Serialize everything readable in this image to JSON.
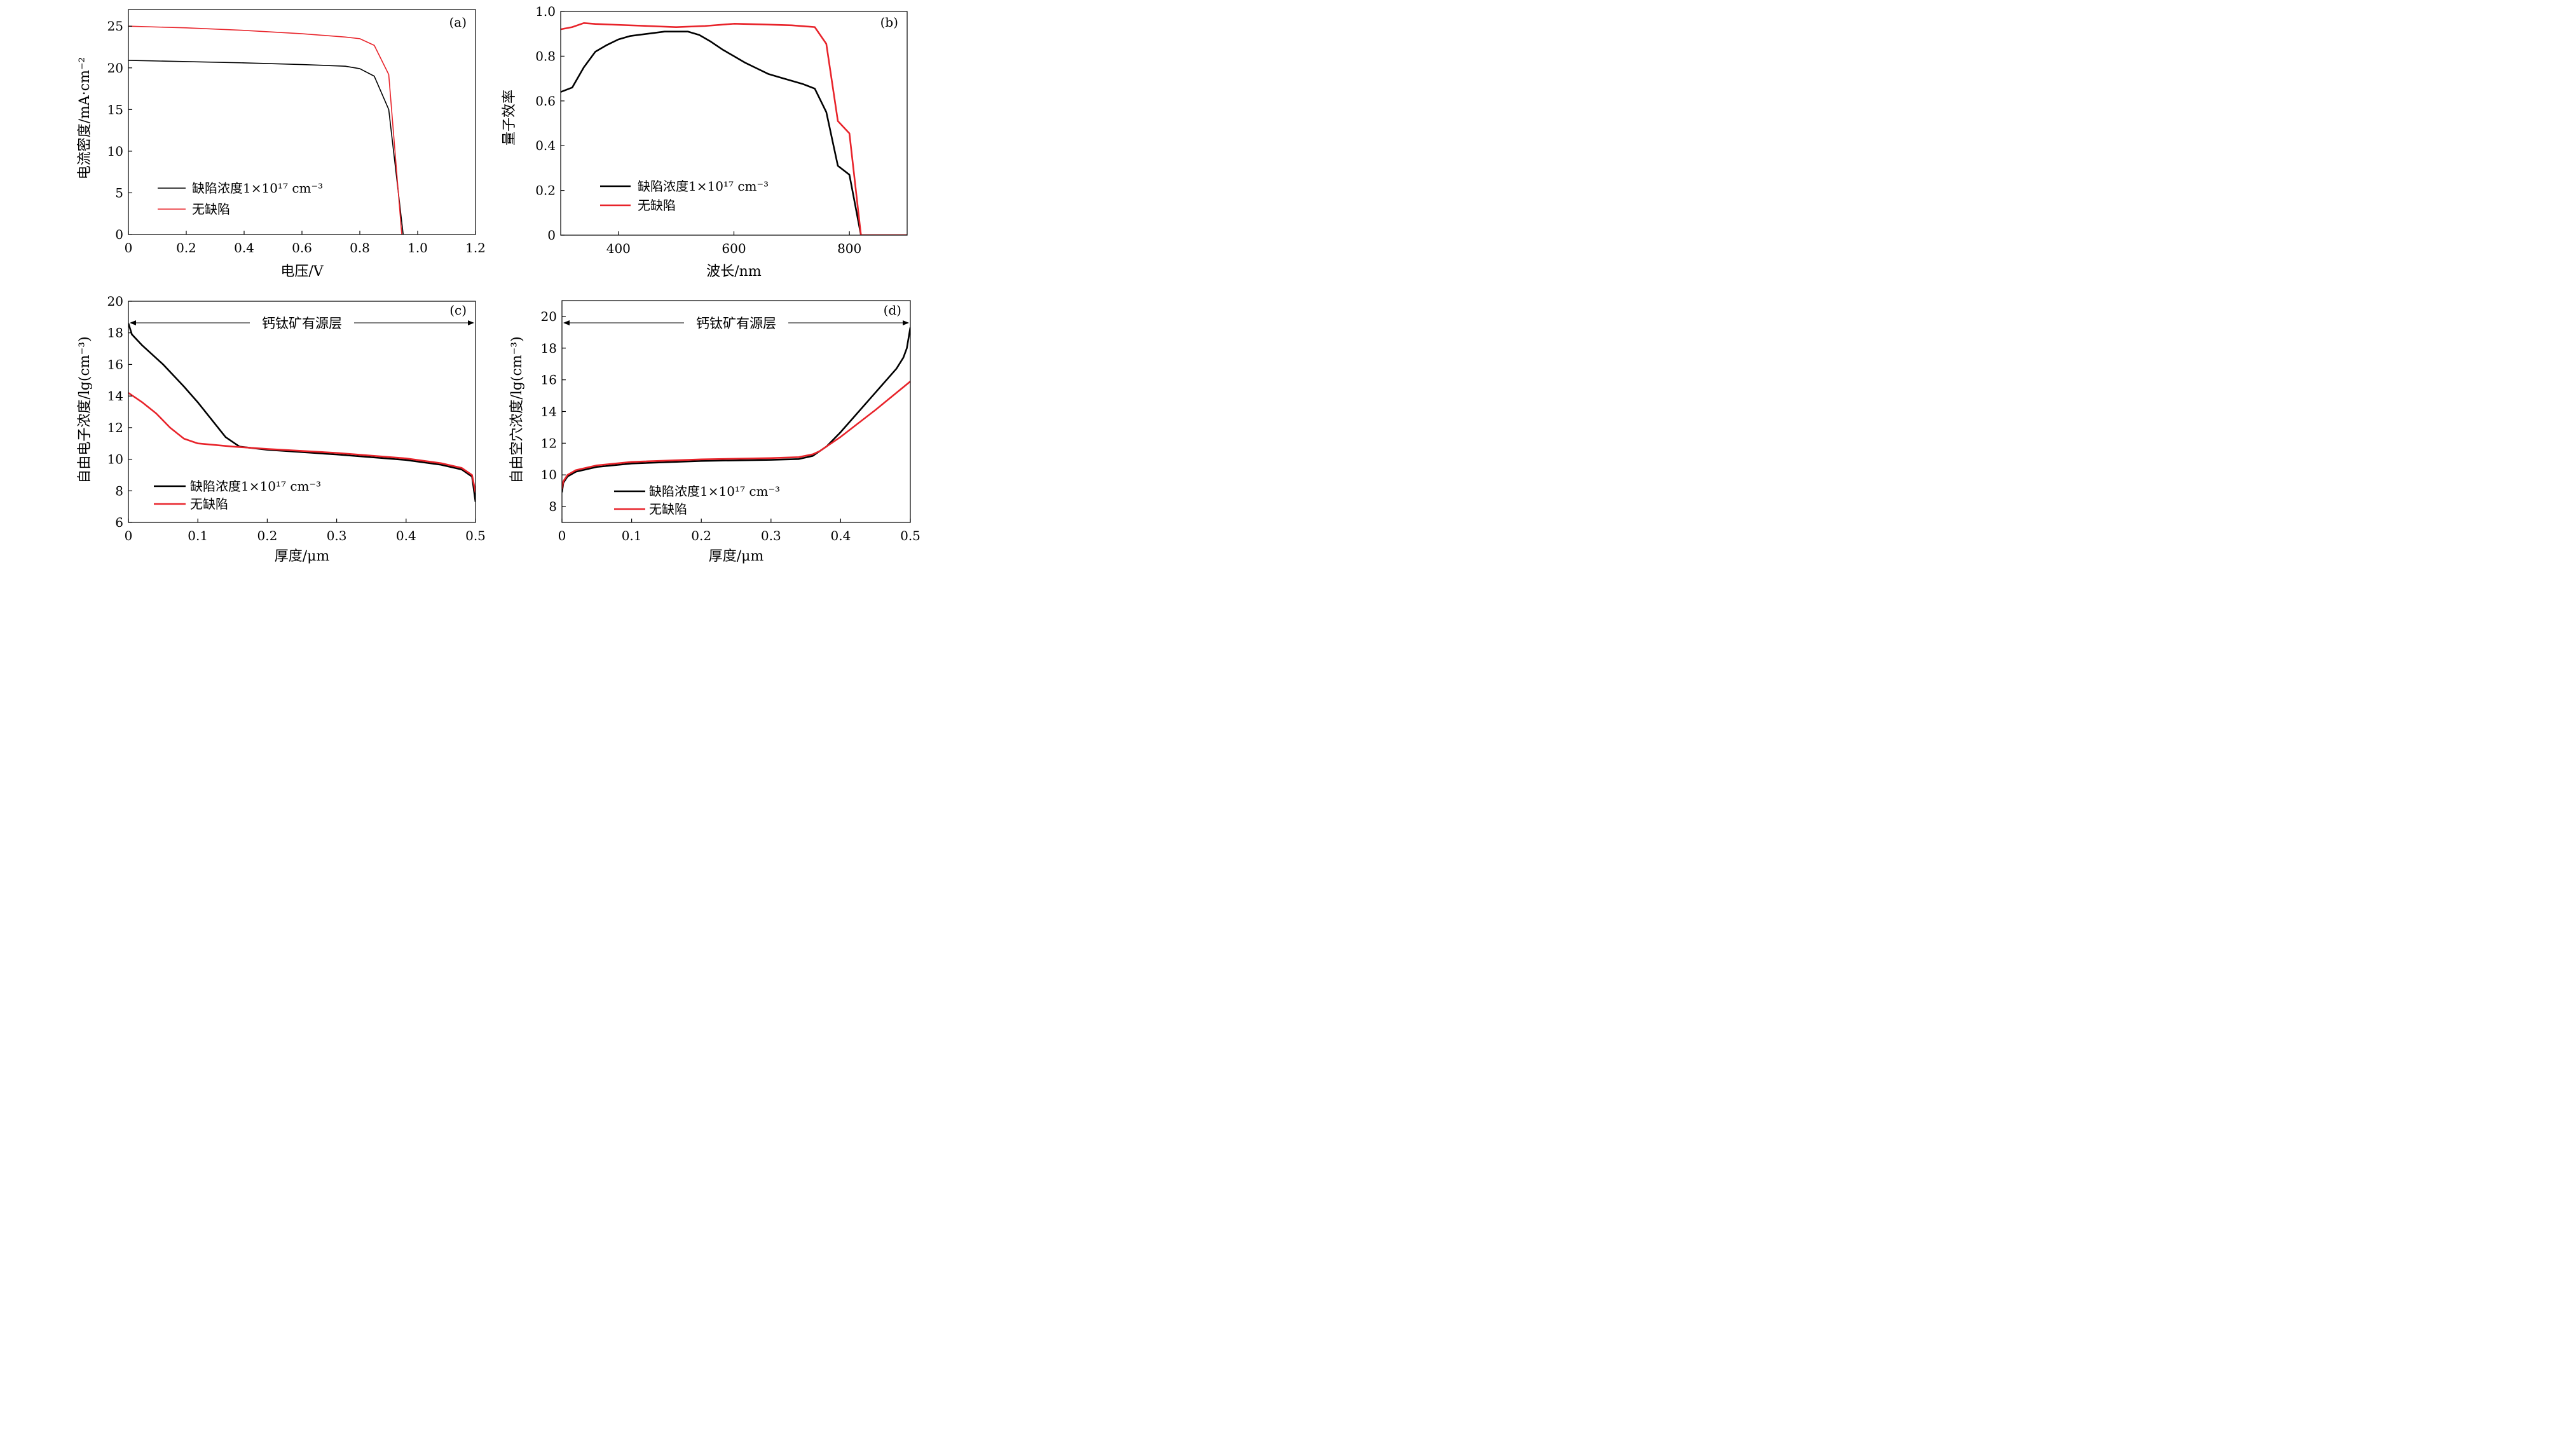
{
  "figure": {
    "colors": {
      "defect": "#000000",
      "no_defect": "#e8232a",
      "axis": "#000000"
    }
  },
  "chart_data": [
    {
      "id": "a",
      "panel_label": "(a)",
      "type": "line",
      "xlabel": "电压/V",
      "ylabel": "电流密度/mA·cm⁻²",
      "xlim": [
        0,
        1.2
      ],
      "ylim": [
        0,
        27
      ],
      "xticks": [
        0,
        0.2,
        0.4,
        0.6,
        0.8,
        1.0,
        1.2
      ],
      "xtick_labels": [
        "0",
        "0.2",
        "0.4",
        "0.6",
        "0.8",
        "1.0",
        "1.2"
      ],
      "yticks": [
        0,
        5,
        10,
        15,
        20,
        25
      ],
      "ytick_labels": [
        "0",
        "5",
        "10",
        "15",
        "20",
        "25"
      ],
      "legend_position": "lower-left",
      "series": [
        {
          "name": "缺陷浓度1×10¹⁷ cm⁻³",
          "color": "#000000",
          "points": [
            [
              0,
              20.9
            ],
            [
              0.2,
              20.75
            ],
            [
              0.4,
              20.6
            ],
            [
              0.6,
              20.4
            ],
            [
              0.75,
              20.2
            ],
            [
              0.8,
              19.9
            ],
            [
              0.85,
              19.0
            ],
            [
              0.9,
              15.0
            ],
            [
              0.95,
              0
            ]
          ]
        },
        {
          "name": "无缺陷",
          "color": "#e8232a",
          "points": [
            [
              0,
              25.0
            ],
            [
              0.2,
              24.8
            ],
            [
              0.4,
              24.5
            ],
            [
              0.6,
              24.1
            ],
            [
              0.75,
              23.7
            ],
            [
              0.8,
              23.5
            ],
            [
              0.85,
              22.7
            ],
            [
              0.9,
              19.2
            ],
            [
              0.945,
              0
            ]
          ]
        }
      ]
    },
    {
      "id": "b",
      "panel_label": "(b)",
      "type": "line",
      "xlabel": "波长/nm",
      "ylabel": "量子效率",
      "xlim": [
        300,
        900
      ],
      "ylim": [
        0,
        1.0
      ],
      "xticks": [
        400,
        600,
        800
      ],
      "xtick_labels": [
        "400",
        "600",
        "800"
      ],
      "yticks": [
        0,
        0.2,
        0.4,
        0.6,
        0.8,
        1.0
      ],
      "ytick_labels": [
        "0",
        "0.2",
        "0.4",
        "0.6",
        "0.8",
        "1.0"
      ],
      "legend_position": "lower-left",
      "series": [
        {
          "name": "缺陷浓度1×10¹⁷ cm⁻³",
          "color": "#000000",
          "points": [
            [
              300,
              0.64
            ],
            [
              320,
              0.66
            ],
            [
              340,
              0.75
            ],
            [
              360,
              0.82
            ],
            [
              380,
              0.85
            ],
            [
              400,
              0.875
            ],
            [
              420,
              0.89
            ],
            [
              450,
              0.9
            ],
            [
              480,
              0.91
            ],
            [
              500,
              0.91
            ],
            [
              520,
              0.91
            ],
            [
              540,
              0.895
            ],
            [
              560,
              0.865
            ],
            [
              580,
              0.83
            ],
            [
              600,
              0.8
            ],
            [
              620,
              0.77
            ],
            [
              640,
              0.745
            ],
            [
              660,
              0.72
            ],
            [
              680,
              0.705
            ],
            [
              700,
              0.69
            ],
            [
              720,
              0.675
            ],
            [
              740,
              0.655
            ],
            [
              760,
              0.55
            ],
            [
              780,
              0.31
            ],
            [
              800,
              0.27
            ],
            [
              820,
              0.0
            ],
            [
              900,
              0.0
            ]
          ]
        },
        {
          "name": "无缺陷",
          "color": "#e8232a",
          "points": [
            [
              300,
              0.92
            ],
            [
              320,
              0.93
            ],
            [
              340,
              0.948
            ],
            [
              360,
              0.944
            ],
            [
              400,
              0.94
            ],
            [
              450,
              0.935
            ],
            [
              500,
              0.93
            ],
            [
              550,
              0.935
            ],
            [
              600,
              0.945
            ],
            [
              650,
              0.942
            ],
            [
              700,
              0.938
            ],
            [
              740,
              0.93
            ],
            [
              760,
              0.855
            ],
            [
              780,
              0.51
            ],
            [
              800,
              0.455
            ],
            [
              820,
              0.0
            ],
            [
              900,
              0.0
            ]
          ]
        }
      ]
    },
    {
      "id": "c",
      "panel_label": "(c)",
      "type": "line",
      "xlabel": "厚度/μm",
      "ylabel": "自由电子浓度/lg(cm⁻³)",
      "xlim": [
        0,
        0.5
      ],
      "ylim": [
        6,
        20
      ],
      "xticks": [
        0,
        0.1,
        0.2,
        0.3,
        0.4,
        0.5
      ],
      "xtick_labels": [
        "0",
        "0.1",
        "0.2",
        "0.3",
        "0.4",
        "0.5"
      ],
      "yticks": [
        6,
        8,
        10,
        12,
        14,
        16,
        18,
        20
      ],
      "ytick_labels": [
        "6",
        "8",
        "10",
        "12",
        "14",
        "16",
        "18",
        "20"
      ],
      "annotation": "钙钛矿有源层",
      "legend_position": "lower-left",
      "series": [
        {
          "name": "缺陷浓度1×10¹⁷ cm⁻³",
          "color": "#000000",
          "points": [
            [
              0,
              18.6
            ],
            [
              0.005,
              17.9
            ],
            [
              0.02,
              17.2
            ],
            [
              0.05,
              16.0
            ],
            [
              0.08,
              14.6
            ],
            [
              0.1,
              13.6
            ],
            [
              0.12,
              12.5
            ],
            [
              0.14,
              11.4
            ],
            [
              0.16,
              10.8
            ],
            [
              0.2,
              10.6
            ],
            [
              0.3,
              10.3
            ],
            [
              0.4,
              9.95
            ],
            [
              0.45,
              9.65
            ],
            [
              0.48,
              9.35
            ],
            [
              0.495,
              8.9
            ],
            [
              0.5,
              7.3
            ]
          ]
        },
        {
          "name": "无缺陷",
          "color": "#e8232a",
          "points": [
            [
              0,
              14.2
            ],
            [
              0.02,
              13.6
            ],
            [
              0.04,
              12.9
            ],
            [
              0.06,
              12.0
            ],
            [
              0.08,
              11.3
            ],
            [
              0.1,
              11.0
            ],
            [
              0.15,
              10.8
            ],
            [
              0.2,
              10.65
            ],
            [
              0.3,
              10.4
            ],
            [
              0.4,
              10.05
            ],
            [
              0.45,
              9.75
            ],
            [
              0.48,
              9.45
            ],
            [
              0.495,
              9.0
            ],
            [
              0.5,
              7.9
            ]
          ]
        }
      ]
    },
    {
      "id": "d",
      "panel_label": "(d)",
      "type": "line",
      "xlabel": "厚度/μm",
      "ylabel": "自由空穴浓度/lg(cm⁻³)",
      "xlim": [
        0,
        0.5
      ],
      "ylim": [
        7,
        21
      ],
      "xticks": [
        0,
        0.1,
        0.2,
        0.3,
        0.4,
        0.5
      ],
      "xtick_labels": [
        "0",
        "0.1",
        "0.2",
        "0.3",
        "0.4",
        "0.5"
      ],
      "yticks": [
        8,
        10,
        12,
        14,
        16,
        18,
        20
      ],
      "ytick_labels": [
        "8",
        "10",
        "12",
        "14",
        "16",
        "18",
        "20"
      ],
      "annotation": "钙钛矿有源层",
      "legend_position": "lower-left",
      "series": [
        {
          "name": "缺陷浓度1×10¹⁷ cm⁻³",
          "color": "#000000",
          "points": [
            [
              0,
              8.9
            ],
            [
              0.002,
              9.5
            ],
            [
              0.008,
              9.9
            ],
            [
              0.02,
              10.2
            ],
            [
              0.05,
              10.5
            ],
            [
              0.1,
              10.72
            ],
            [
              0.2,
              10.88
            ],
            [
              0.3,
              10.95
            ],
            [
              0.34,
              11.0
            ],
            [
              0.36,
              11.2
            ],
            [
              0.38,
              11.8
            ],
            [
              0.4,
              12.7
            ],
            [
              0.42,
              13.7
            ],
            [
              0.44,
              14.7
            ],
            [
              0.46,
              15.7
            ],
            [
              0.48,
              16.7
            ],
            [
              0.49,
              17.4
            ],
            [
              0.495,
              18.0
            ],
            [
              0.5,
              19.3
            ]
          ]
        },
        {
          "name": "无缺陷",
          "color": "#e8232a",
          "points": [
            [
              0,
              9.1
            ],
            [
              0.002,
              9.6
            ],
            [
              0.008,
              10.0
            ],
            [
              0.02,
              10.3
            ],
            [
              0.05,
              10.6
            ],
            [
              0.1,
              10.82
            ],
            [
              0.2,
              10.98
            ],
            [
              0.3,
              11.06
            ],
            [
              0.34,
              11.12
            ],
            [
              0.36,
              11.3
            ],
            [
              0.37,
              11.5
            ],
            [
              0.4,
              12.4
            ],
            [
              0.45,
              14.1
            ],
            [
              0.5,
              15.9
            ]
          ]
        }
      ]
    }
  ]
}
